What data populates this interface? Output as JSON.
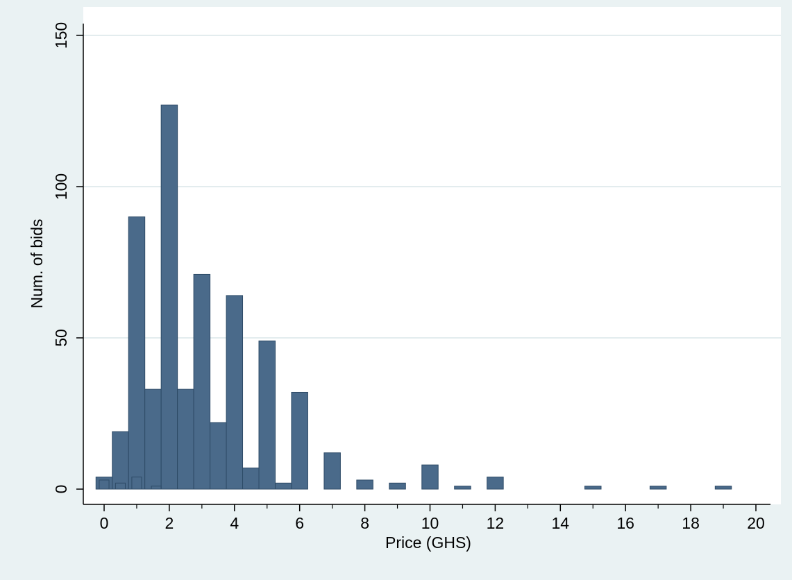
{
  "chart_data": {
    "type": "bar",
    "title": "",
    "xlabel": "Price (GHS)",
    "ylabel": "Num. of bids",
    "xlim": [
      -0.25,
      20.25
    ],
    "ylim": [
      0,
      150
    ],
    "x_ticks": [
      0,
      2,
      4,
      6,
      8,
      10,
      12,
      14,
      16,
      18,
      20
    ],
    "y_ticks": [
      0,
      50,
      100,
      150
    ],
    "grid": "horizontal",
    "legend": "none",
    "colors": {
      "background": "#eaf2f3",
      "plot_area": "#ffffff",
      "bar_fill": "#4a6a8a",
      "bar_edge": "#2d4a66",
      "grid": "#e3ecee",
      "axis": "#000000"
    },
    "bin_width": 0.5,
    "bins": [
      {
        "x": 0,
        "count": 4
      },
      {
        "x": 0.5,
        "count": 19
      },
      {
        "x": 1,
        "count": 90
      },
      {
        "x": 1.5,
        "count": 33
      },
      {
        "x": 2,
        "count": 127
      },
      {
        "x": 2.5,
        "count": 33
      },
      {
        "x": 3,
        "count": 71
      },
      {
        "x": 3.5,
        "count": 22
      },
      {
        "x": 4,
        "count": 64
      },
      {
        "x": 4.5,
        "count": 7
      },
      {
        "x": 5,
        "count": 49
      },
      {
        "x": 5.5,
        "count": 2
      },
      {
        "x": 6,
        "count": 32
      },
      {
        "x": 7,
        "count": 12
      },
      {
        "x": 8,
        "count": 3
      },
      {
        "x": 9,
        "count": 2
      },
      {
        "x": 10,
        "count": 8
      },
      {
        "x": 11,
        "count": 1
      },
      {
        "x": 12,
        "count": 4
      },
      {
        "x": 15,
        "count": 1
      },
      {
        "x": 17,
        "count": 1
      },
      {
        "x": 19,
        "count": 1
      }
    ],
    "small_bins": [
      {
        "x": 0,
        "count": 3
      },
      {
        "x": 0.5,
        "count": 2
      },
      {
        "x": 1,
        "count": 4
      },
      {
        "x": 1.6,
        "count": 1
      }
    ]
  }
}
